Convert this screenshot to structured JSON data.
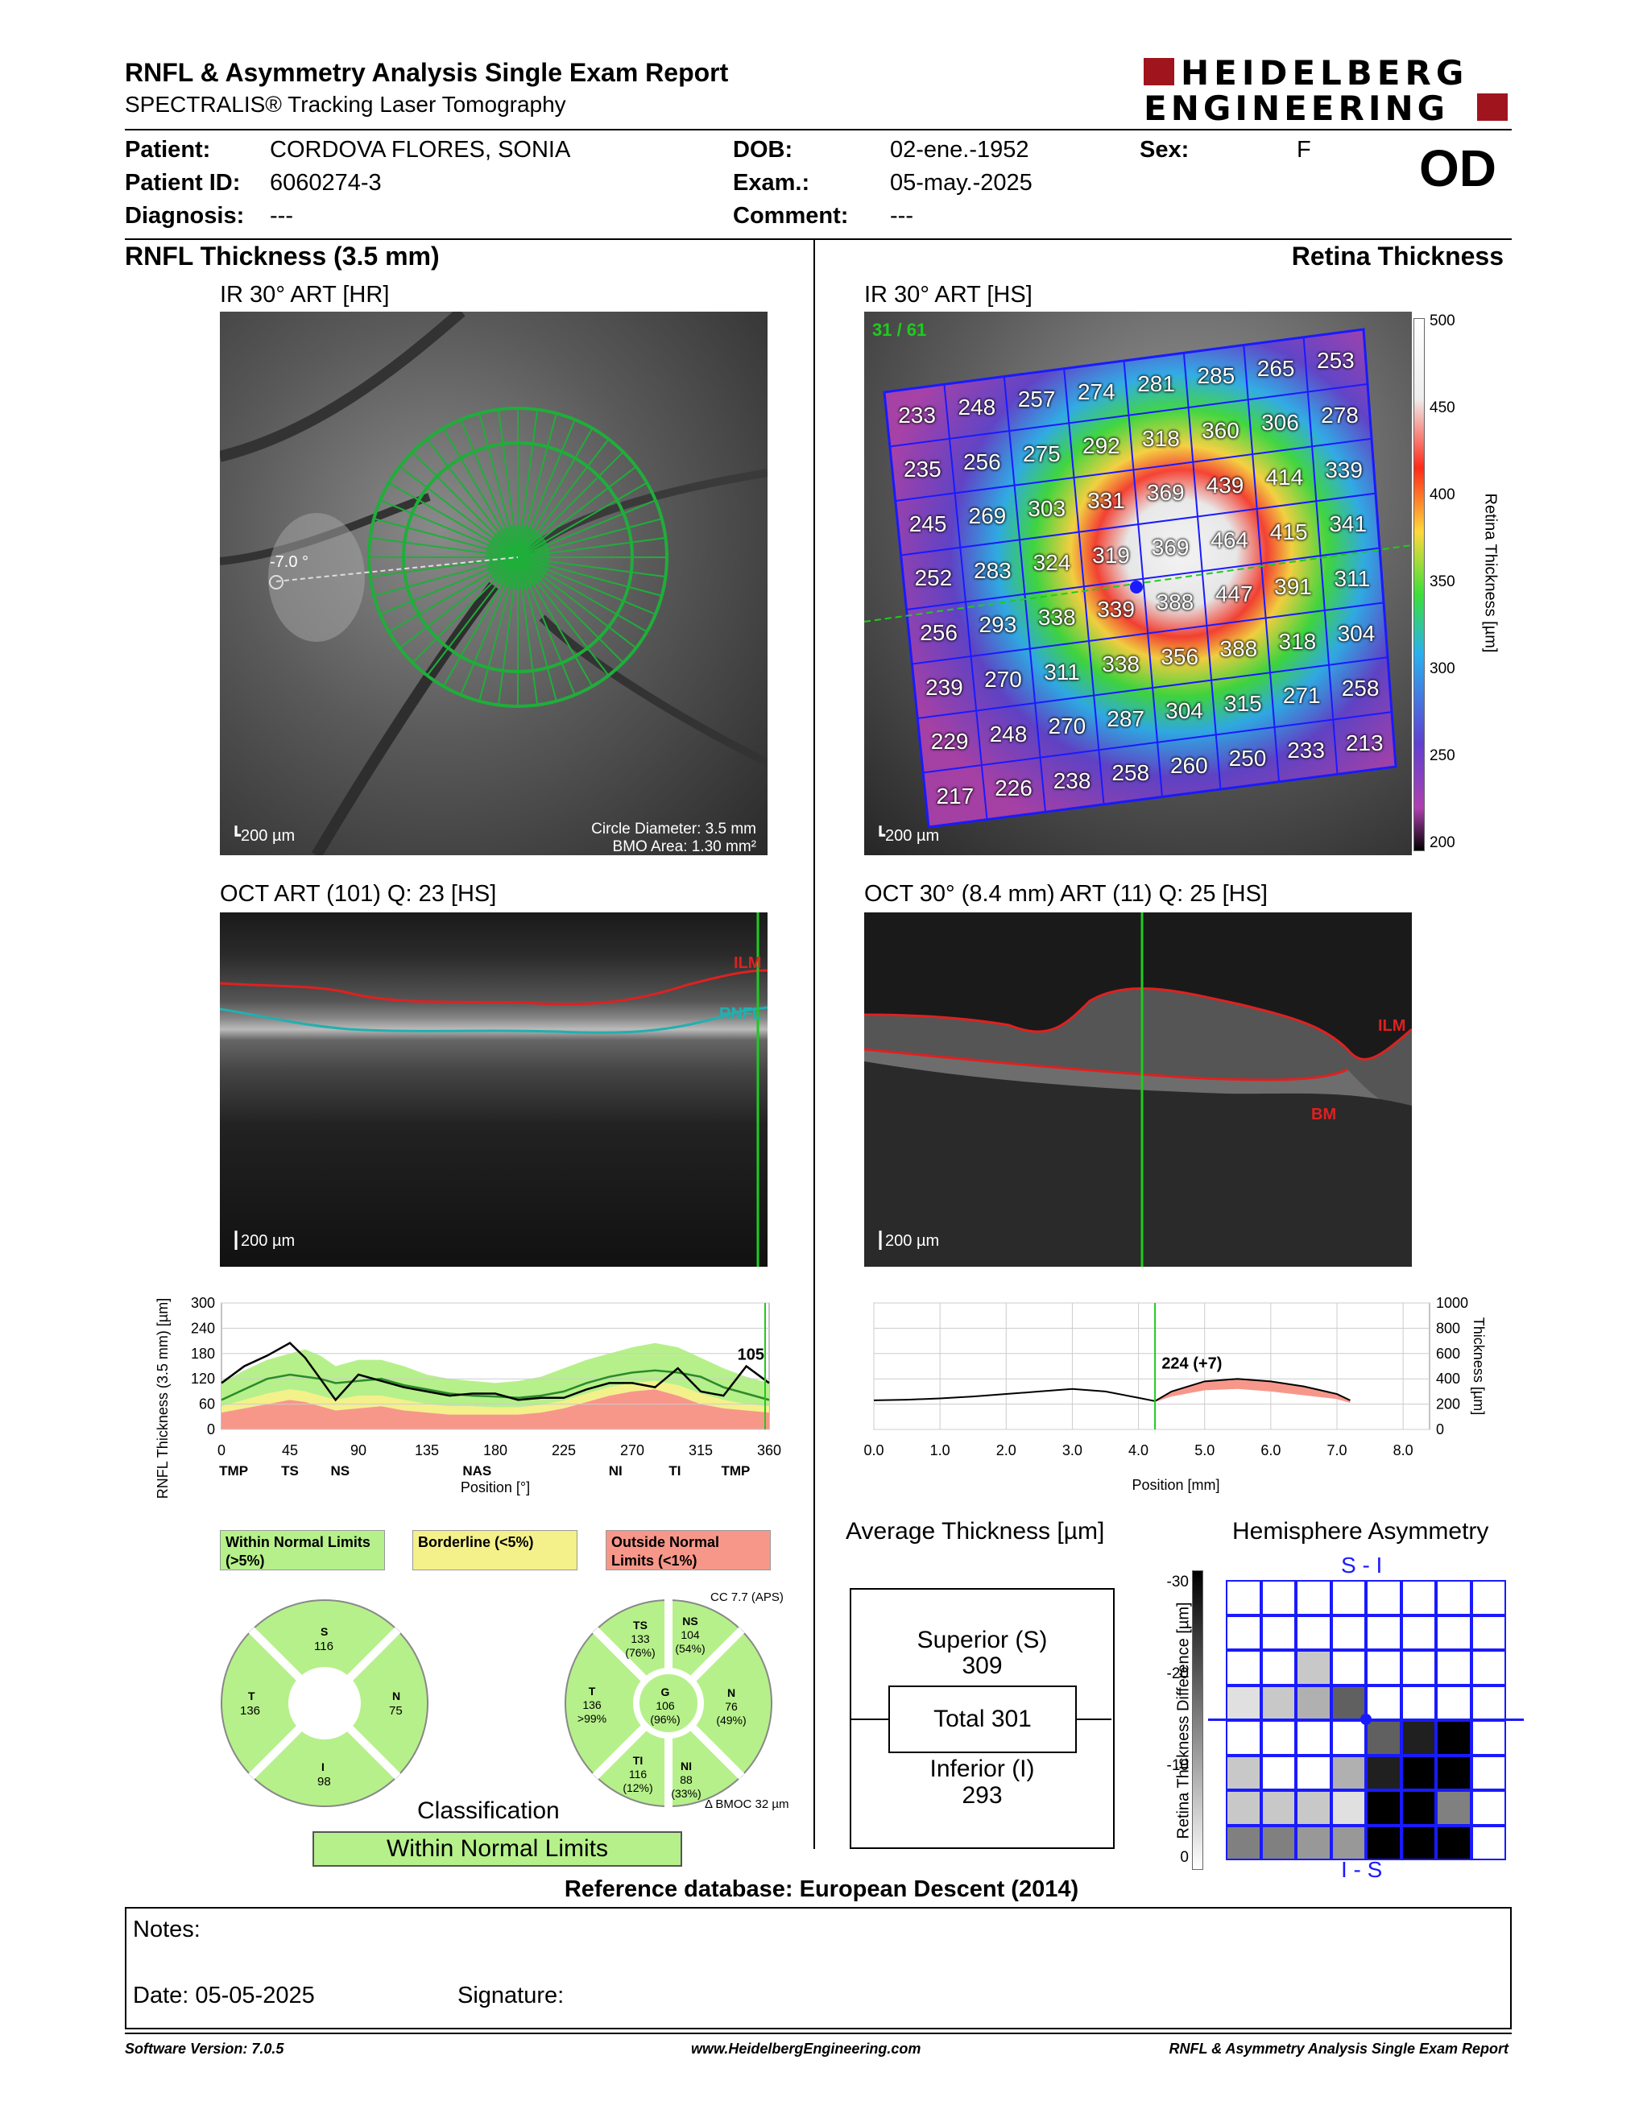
{
  "header": {
    "title": "RNFL & Asymmetry Analysis Single Exam Report",
    "subtitle": "SPECTRALIS® Tracking Laser Tomography",
    "logo_line1": "HEIDELBERG",
    "logo_line2": "ENGINEERING"
  },
  "patient": {
    "patient_label": "Patient:",
    "patient_value": "CORDOVA FLORES, SONIA",
    "id_label": "Patient ID:",
    "id_value": "6060274-3",
    "diagnosis_label": "Diagnosis:",
    "diagnosis_value": "---",
    "dob_label": "DOB:",
    "dob_value": "02-ene.-1952",
    "exam_label": "Exam.:",
    "exam_value": "05-may.-2025",
    "comment_label": "Comment:",
    "comment_value": "---",
    "sex_label": "Sex:",
    "sex_value": "F",
    "eye": "OD"
  },
  "left": {
    "section_title": "RNFL Thickness (3.5 mm)",
    "ir_caption": "IR 30° ART [HR]",
    "ir_angle": "-7.0 °",
    "ir_scale": "200 µm",
    "circle_diameter": "Circle Diameter: 3.5 mm",
    "bmo_area": "BMO Area: 1.30 mm²",
    "oct_caption": "OCT ART (101) Q: 23 [HS]",
    "oct_scale": "200 µm",
    "oct_ilm": "ILM",
    "oct_rnfl": "RNFL"
  },
  "right": {
    "section_title": "Retina Thickness",
    "ir_caption": "IR 30° ART [HS]",
    "scan_counter": "31 / 61",
    "ir_scale": "200 µm",
    "colorbar_label": "Retina Thickness [µm]",
    "colorbar_ticks": [
      "500",
      "450",
      "400",
      "350",
      "300",
      "250",
      "200"
    ],
    "grid_values": [
      [
        "233",
        "248",
        "257",
        "274",
        "281",
        "285",
        "265",
        "253"
      ],
      [
        "235",
        "256",
        "275",
        "292",
        "318",
        "360",
        "306",
        "278"
      ],
      [
        "245",
        "269",
        "303",
        "331",
        "369",
        "439",
        "414",
        "339"
      ],
      [
        "252",
        "283",
        "324",
        "319",
        "369",
        "464",
        "415",
        "341"
      ],
      [
        "256",
        "293",
        "338",
        "339",
        "388",
        "447",
        "391",
        "311"
      ],
      [
        "239",
        "270",
        "311",
        "338",
        "356",
        "388",
        "318",
        "304"
      ],
      [
        "229",
        "248",
        "270",
        "287",
        "304",
        "315",
        "271",
        "258"
      ],
      [
        "217",
        "226",
        "238",
        "258",
        "260",
        "250",
        "233",
        "213"
      ]
    ],
    "oct_caption": "OCT 30° (8.4 mm) ART (11) Q: 25 [HS]",
    "oct_scale": "200 µm",
    "oct_ilm": "ILM",
    "oct_bm": "BM"
  },
  "chart_data": [
    {
      "type": "line",
      "ylabel": "RNFL Thickness (3.5 mm) [µm]",
      "xlabel": "Position [°]",
      "ylim": [
        0,
        300
      ],
      "yticks": [
        "0",
        "60",
        "120",
        "180",
        "240",
        "300"
      ],
      "xticks": [
        "0",
        "45",
        "90",
        "135",
        "180",
        "225",
        "270",
        "315",
        "360"
      ],
      "sector_labels": [
        "TMP",
        "TS",
        "NS",
        "NAS",
        "NI",
        "TI",
        "TMP"
      ],
      "sector_positions": [
        0,
        45,
        90,
        135,
        180,
        225,
        270,
        315,
        360
      ],
      "annotation": "105",
      "x": [
        0,
        15,
        30,
        45,
        55,
        65,
        75,
        90,
        105,
        120,
        135,
        150,
        165,
        180,
        195,
        210,
        225,
        240,
        255,
        270,
        285,
        300,
        315,
        330,
        345,
        360
      ],
      "series": [
        {
          "values": [
            110,
            150,
            175,
            205,
            170,
            120,
            70,
            130,
            115,
            100,
            90,
            80,
            85,
            85,
            70,
            75,
            75,
            95,
            110,
            110,
            100,
            145,
            90,
            80,
            150,
            110
          ]
        },
        {
          "values": [
            70,
            95,
            120,
            130,
            125,
            120,
            110,
            115,
            120,
            105,
            95,
            85,
            80,
            78,
            75,
            80,
            90,
            110,
            125,
            135,
            140,
            135,
            125,
            100,
            85,
            70
          ]
        }
      ],
      "bands": {
        "outside_normal_upper": [
          40,
          50,
          60,
          70,
          65,
          55,
          45,
          50,
          55,
          45,
          40,
          35,
          35,
          35,
          35,
          40,
          50,
          65,
          80,
          90,
          95,
          80,
          60,
          50,
          45,
          40
        ],
        "borderline_upper": [
          55,
          70,
          85,
          95,
          90,
          80,
          70,
          80,
          80,
          70,
          60,
          55,
          55,
          52,
          52,
          58,
          68,
          85,
          100,
          110,
          115,
          105,
          85,
          70,
          60,
          55
        ],
        "normal_upper": [
          110,
          140,
          165,
          180,
          190,
          175,
          150,
          165,
          165,
          150,
          130,
          120,
          115,
          110,
          115,
          125,
          145,
          165,
          180,
          195,
          205,
          195,
          170,
          145,
          125,
          110
        ]
      }
    },
    {
      "type": "line",
      "ylabel": "Thickness [µm]",
      "xlabel": "Position [mm]",
      "ylim": [
        0,
        1000
      ],
      "yticks": [
        "0",
        "200",
        "400",
        "600",
        "800",
        "1000"
      ],
      "xticks": [
        "0.0",
        "1.0",
        "2.0",
        "3.0",
        "4.0",
        "5.0",
        "6.0",
        "7.0",
        "8.0"
      ],
      "annotation": "224 (+7)",
      "x": [
        0,
        0.5,
        1.0,
        1.5,
        2.0,
        2.5,
        3.0,
        3.5,
        4.0,
        4.25,
        4.5,
        5.0,
        5.5,
        6.0,
        6.5,
        7.0,
        7.2
      ],
      "series": [
        {
          "values": [
            230,
            235,
            245,
            260,
            280,
            300,
            320,
            300,
            250,
            224,
            300,
            380,
            400,
            380,
            340,
            280,
            230
          ]
        }
      ],
      "reference": [
        230,
        235,
        245,
        260,
        280,
        300,
        320,
        300,
        250,
        217,
        260,
        310,
        320,
        300,
        270,
        240,
        210
      ]
    }
  ],
  "legend": {
    "within": "Within Normal Limits (>5%)",
    "borderline": "Borderline (<5%)",
    "outside": "Outside Normal Limits (<1%)"
  },
  "sectors_simple": {
    "S": "116",
    "T": "136",
    "N": "75",
    "I": "98",
    "S_label": "S",
    "T_label": "T",
    "N_label": "N",
    "I_label": "I"
  },
  "sectors_detailed": {
    "cc": "CC 7.7 (APS)",
    "TS": {
      "label": "TS",
      "value": "133",
      "pct": "(76%)"
    },
    "NS": {
      "label": "NS",
      "value": "104",
      "pct": "(54%)"
    },
    "T": {
      "label": "T",
      "value": "136",
      "pct": ">99%"
    },
    "G": {
      "label": "G",
      "value": "106",
      "pct": "(96%)"
    },
    "N": {
      "label": "N",
      "value": "76",
      "pct": "(49%)"
    },
    "TI": {
      "label": "TI",
      "value": "116",
      "pct": "(12%)"
    },
    "NI": {
      "label": "NI",
      "value": "88",
      "pct": "(33%)"
    },
    "bmo": "Δ BMOC 32 µm"
  },
  "classification": {
    "title": "Classification",
    "value": "Within Normal Limits"
  },
  "average": {
    "title": "Average Thickness [µm]",
    "superior_label": "Superior (S)",
    "superior_value": "309",
    "total": "Total 301",
    "inferior_label": "Inferior (I)",
    "inferior_value": "293"
  },
  "asymmetry": {
    "title": "Hemisphere Asymmetry",
    "top_label": "S - I",
    "bottom_label": "I - S",
    "axis_label": "Retina Thickness Difference [µm]",
    "ticks": [
      "-30",
      "-20",
      "-10",
      "0"
    ],
    "grid_top": [
      [
        0,
        0,
        0,
        0,
        0,
        0,
        0,
        0
      ],
      [
        0,
        0,
        0,
        0,
        0,
        0,
        0,
        0
      ],
      [
        0,
        0,
        2,
        0,
        0,
        0,
        0,
        0
      ],
      [
        1,
        2,
        3,
        6,
        0,
        0,
        0,
        0
      ]
    ],
    "grid_bottom": [
      [
        0,
        0,
        0,
        0,
        6,
        8,
        9,
        0
      ],
      [
        2,
        0,
        0,
        3,
        8,
        9,
        9,
        0
      ],
      [
        2,
        2,
        2,
        1,
        9,
        9,
        5,
        0
      ],
      [
        5,
        5,
        4,
        4,
        9,
        9,
        9,
        0
      ]
    ]
  },
  "reference_db": "Reference database: European Descent (2014)",
  "notes": {
    "notes_label": "Notes:",
    "date_label": "Date: 05-05-2025",
    "signature_label": "Signature:"
  },
  "footer": {
    "software": "Software Version: 7.0.5",
    "website": "www.HeidelbergEngineering.com",
    "report": "RNFL & Asymmetry Analysis Single Exam Report"
  },
  "colors": {
    "normal": "#b6f08a",
    "borderline": "#f4f08a",
    "outside": "#f7978a",
    "brand_red": "#a0141e",
    "grid_blue": "#1a1aff",
    "green_scan": "#1ecb1e"
  }
}
